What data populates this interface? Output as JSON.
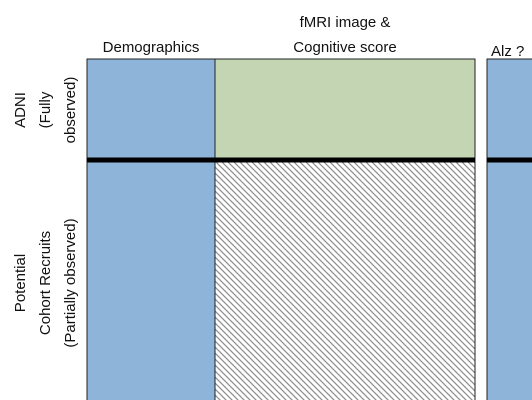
{
  "columns": [
    {
      "lines": [
        "Demographics"
      ]
    },
    {
      "lines": [
        "fMRI image &",
        "Cognitive score"
      ]
    },
    {
      "lines": [
        "Alz ?"
      ]
    }
  ],
  "rows": [
    {
      "lines": [
        "ADNI",
        "(Fully",
        "observed)"
      ]
    },
    {
      "lines": [
        "Potential",
        "Cohort Recruits",
        "(Partially observed)"
      ]
    }
  ]
}
